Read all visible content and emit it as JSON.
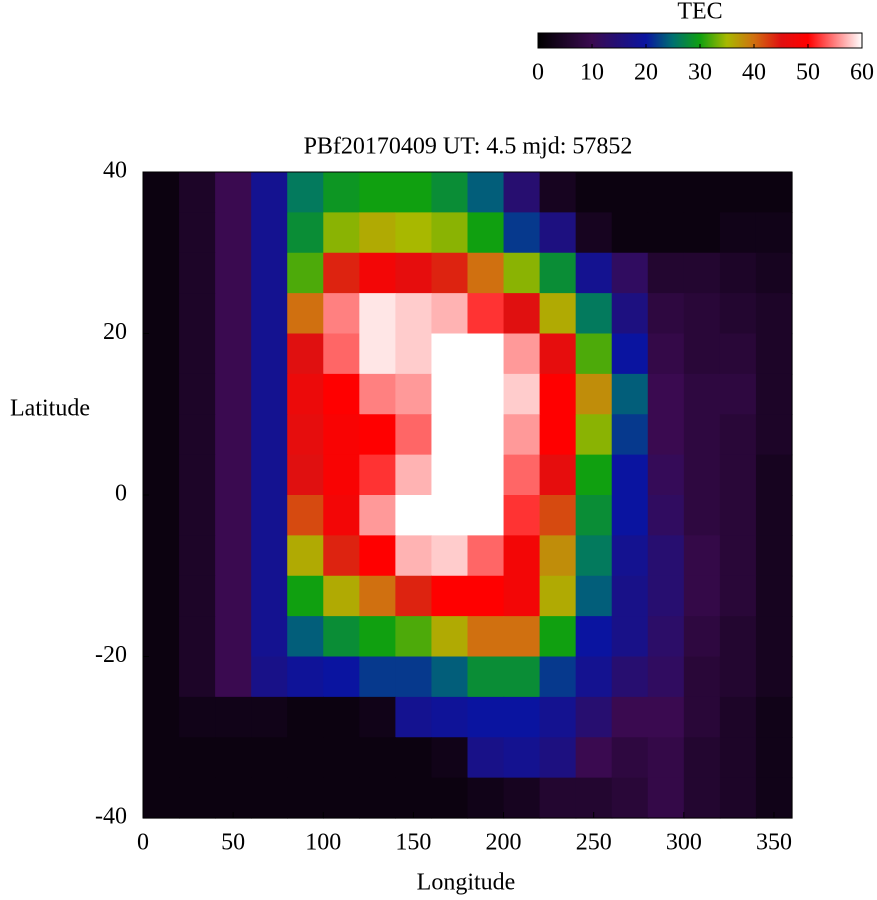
{
  "chart_data": {
    "type": "heatmap",
    "title": "PBf20170409  UT: 4.5  mjd: 57852",
    "x_label": "Longitude",
    "y_label": "Latitude",
    "colorbar_label": "TEC",
    "xlim": [
      0,
      360
    ],
    "ylim": [
      -40,
      40
    ],
    "xticks": [
      0,
      50,
      100,
      150,
      200,
      250,
      300,
      350
    ],
    "yticks": [
      -40,
      -20,
      0,
      20,
      40
    ],
    "colorbar_lim": [
      0,
      60
    ],
    "colorbar_ticks": [
      0,
      10,
      20,
      30,
      40,
      50,
      60
    ],
    "colormap": [
      {
        "value": 0,
        "color": "#000000"
      },
      {
        "value": 10,
        "color": "#3a0a50"
      },
      {
        "value": 20,
        "color": "#0a14a0"
      },
      {
        "value": 25,
        "color": "#007070"
      },
      {
        "value": 30,
        "color": "#10a010"
      },
      {
        "value": 35,
        "color": "#a8b800"
      },
      {
        "value": 40,
        "color": "#d07010"
      },
      {
        "value": 45,
        "color": "#e01010"
      },
      {
        "value": 50,
        "color": "#ff0000"
      },
      {
        "value": 55,
        "color": "#ff8080"
      },
      {
        "value": 60,
        "color": "#ffffff"
      }
    ],
    "x": [
      10,
      30,
      50,
      70,
      90,
      110,
      130,
      150,
      170,
      190,
      210,
      230,
      250,
      270,
      290,
      310,
      330,
      350
    ],
    "y": [
      37.5,
      32.5,
      27.5,
      22.5,
      17.5,
      12.5,
      7.5,
      2.5,
      -2.5,
      -7.5,
      -12.5,
      -17.5,
      -22.5,
      -27.5,
      -32.5,
      -37.5
    ],
    "values": [
      [
        2,
        5,
        10,
        18,
        26,
        29,
        30,
        30,
        28,
        24,
        14,
        4,
        2,
        2,
        2,
        2,
        2,
        2
      ],
      [
        2,
        5,
        10,
        18,
        28,
        34,
        36,
        35,
        34,
        30,
        22,
        16,
        4,
        2,
        2,
        2,
        3,
        3
      ],
      [
        2,
        5,
        10,
        18,
        32,
        44,
        48,
        46,
        44,
        40,
        34,
        28,
        18,
        12,
        6,
        6,
        5,
        4
      ],
      [
        2,
        5,
        10,
        18,
        40,
        55,
        59,
        58,
        57,
        52,
        45,
        36,
        26,
        16,
        8,
        7,
        6,
        5
      ],
      [
        2,
        5,
        10,
        18,
        45,
        54,
        59,
        58,
        60,
        60,
        56,
        46,
        32,
        20,
        9,
        7,
        7,
        5
      ],
      [
        2,
        5,
        10,
        18,
        47,
        50,
        55,
        56,
        60,
        60,
        58,
        50,
        38,
        24,
        10,
        8,
        8,
        5
      ],
      [
        2,
        5,
        10,
        18,
        46,
        49,
        50,
        54,
        60,
        60,
        56,
        50,
        34,
        22,
        10,
        8,
        7,
        5
      ],
      [
        2,
        5,
        10,
        18,
        45,
        49,
        52,
        57,
        60,
        60,
        54,
        46,
        30,
        20,
        11,
        8,
        7,
        4
      ],
      [
        2,
        5,
        10,
        18,
        42,
        48,
        56,
        60,
        60,
        60,
        52,
        42,
        28,
        20,
        12,
        8,
        7,
        4
      ],
      [
        2,
        5,
        10,
        18,
        36,
        44,
        50,
        57,
        58,
        54,
        48,
        38,
        26,
        18,
        14,
        9,
        7,
        4
      ],
      [
        2,
        5,
        10,
        18,
        30,
        36,
        40,
        44,
        50,
        50,
        48,
        36,
        24,
        17,
        14,
        9,
        7,
        4
      ],
      [
        2,
        5,
        10,
        18,
        24,
        28,
        30,
        32,
        36,
        40,
        40,
        30,
        20,
        17,
        13,
        8,
        6,
        4
      ],
      [
        2,
        5,
        10,
        17,
        19,
        20,
        22,
        22,
        24,
        28,
        28,
        22,
        18,
        14,
        12,
        7,
        6,
        4
      ],
      [
        2,
        3,
        3,
        3,
        2,
        2,
        3,
        18,
        19,
        20,
        20,
        18,
        14,
        10,
        10,
        7,
        5,
        3
      ],
      [
        2,
        2,
        2,
        2,
        2,
        2,
        2,
        2,
        3,
        17,
        18,
        16,
        10,
        8,
        9,
        6,
        5,
        3
      ],
      [
        2,
        2,
        2,
        2,
        2,
        2,
        2,
        2,
        2,
        3,
        4,
        6,
        6,
        7,
        9,
        6,
        5,
        3
      ]
    ]
  }
}
